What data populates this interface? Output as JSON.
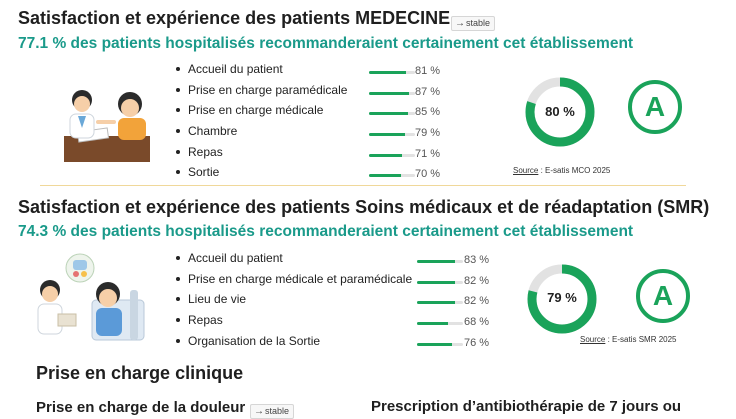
{
  "colors": {
    "accent_teal": "#1a9a8a",
    "bar_green": "#1aa35a",
    "bar_track": "#e2e2e2",
    "divider": "#f0d89a"
  },
  "medecine": {
    "title": "Satisfaction et expérience des patients MEDECINE",
    "trend": "stable",
    "subtitle": "77.1 % des patients hospitalisés recommanderaient certainement cet établissement",
    "items": [
      {
        "label": "Accueil du patient",
        "pct": "81 %",
        "value": 81
      },
      {
        "label": "Prise en charge paramédicale",
        "pct": "87 %",
        "value": 87
      },
      {
        "label": "Prise en charge médicale",
        "pct": "85 %",
        "value": 85
      },
      {
        "label": "Chambre",
        "pct": "79 %",
        "value": 79
      },
      {
        "label": "Repas",
        "pct": "71 %",
        "value": 71
      },
      {
        "label": "Sortie",
        "pct": "70 %",
        "value": 70
      }
    ],
    "donut_label": "80 %",
    "donut_value": 80,
    "grade": "A",
    "source_label": "Source",
    "source_text": " : E-satis MCO 2025"
  },
  "smr": {
    "title": "Satisfaction et expérience des patients Soins médicaux et de réadaptation (SMR)",
    "subtitle": "74.3 % des patients hospitalisés recommanderaient certainement cet établissement",
    "items": [
      {
        "label": "Accueil du patient",
        "pct": "83 %",
        "value": 83
      },
      {
        "label": "Prise en charge médicale et paramédicale",
        "pct": "82 %",
        "value": 82
      },
      {
        "label": "Lieu de vie",
        "pct": "82 %",
        "value": 82
      },
      {
        "label": "Repas",
        "pct": "68 %",
        "value": 68
      },
      {
        "label": "Organisation de la Sortie",
        "pct": "76 %",
        "value": 76
      }
    ],
    "donut_label": "79 %",
    "donut_value": 79,
    "grade": "A",
    "source_label": "Source",
    "source_text": " : E-satis SMR 2025"
  },
  "clinique": {
    "title": "Prise en charge clinique",
    "douleur_title": "Prise en charge de la douleur",
    "douleur_trend": "stable",
    "antibio_title": "Prescription d’antibiothérapie de 7 jours ou"
  }
}
